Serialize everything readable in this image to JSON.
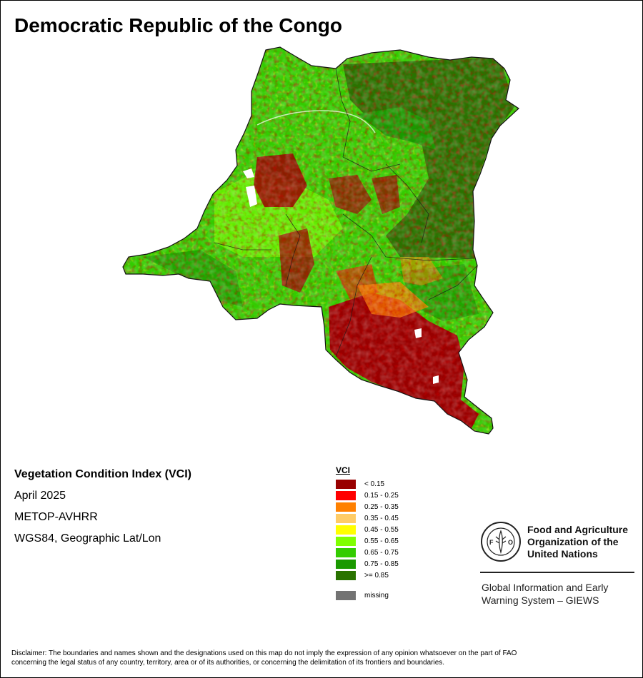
{
  "title": "Democratic Republic of the Congo",
  "info": {
    "index_name": "Vegetation Condition Index (VCI)",
    "date": "April 2025",
    "sensor": "METOP-AVHRR",
    "projection": "WGS84, Geographic Lat/Lon"
  },
  "legend": {
    "title": "VCI",
    "items": [
      {
        "label": "< 0.15",
        "color": "#990000"
      },
      {
        "label": "0.15 - 0.25",
        "color": "#ff0000"
      },
      {
        "label": "0.25 - 0.35",
        "color": "#ff8000"
      },
      {
        "label": "0.35 - 0.45",
        "color": "#ffcc66"
      },
      {
        "label": "0.45 - 0.55",
        "color": "#ffff00"
      },
      {
        "label": "0.55 - 0.65",
        "color": "#80ff00"
      },
      {
        "label": "0.65 - 0.75",
        "color": "#33cc00"
      },
      {
        "label": "0.75 - 0.85",
        "color": "#1a9900"
      },
      {
        "label": ">= 0.85",
        "color": "#2a7300"
      }
    ],
    "missing": {
      "label": "missing",
      "color": "#737373"
    }
  },
  "organization": {
    "line1": "Food and Agriculture",
    "line2": "Organization of the",
    "line3": "United Nations",
    "logo_text": "FAO",
    "logo_motto": "FIAT PANIS",
    "system_line1": "Global Information and Early",
    "system_line2": "Warning System – GIEWS"
  },
  "disclaimer_line1": "Disclaimer: The boundaries and names shown and the designations used on this map do not imply the expression of any opinion whatsoever on the part of FAO",
  "disclaimer_line2": "concerning the legal status of any country, territory, area or of its authorities, or concerning the delimitation of its frontiers and boundaries."
}
